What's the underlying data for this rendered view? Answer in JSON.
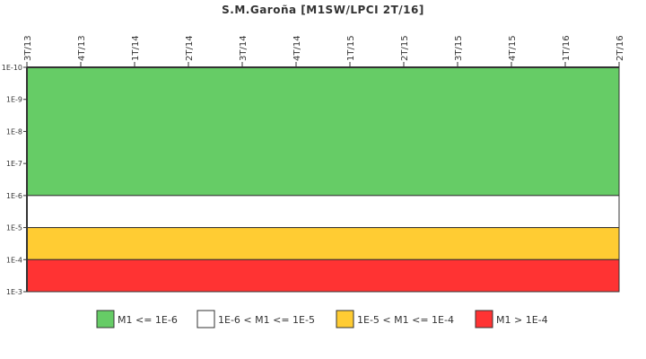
{
  "chart_data": {
    "type": "area",
    "title": "S.M.Garoña [M1SW/LPCI 2T/16]",
    "x_tick_labels": [
      "3T/13",
      "4T/13",
      "1T/14",
      "2T/14",
      "3T/14",
      "4T/14",
      "1T/15",
      "2T/15",
      "3T/15",
      "4T/15",
      "1T/16",
      "2T/16"
    ],
    "y_scale": "log",
    "y_inverted": true,
    "ylim": [
      1e-10,
      0.001
    ],
    "y_tick_values": [
      1e-10,
      1e-09,
      1e-08,
      1e-07,
      1e-06,
      1e-05,
      0.0001,
      0.001
    ],
    "y_tick_labels": [
      "1E-10",
      "1E-9",
      "1E-8",
      "1E-7",
      "1E-6",
      "1E-5",
      "1E-4",
      "1E-3"
    ],
    "bands": [
      {
        "label": "M1 <= 1E-6",
        "from": 1e-10,
        "to": 1e-06,
        "color": "#66cc66"
      },
      {
        "label": "1E-6 < M1 <= 1E-5",
        "from": 1e-06,
        "to": 1e-05,
        "color": "#ffffff"
      },
      {
        "label": "1E-5 < M1 <= 1E-4",
        "from": 1e-05,
        "to": 0.0001,
        "color": "#ffcc33"
      },
      {
        "label": "M1 > 1E-4",
        "from": 0.0001,
        "to": 0.001,
        "color": "#ff3333"
      }
    ],
    "grid": false,
    "legend_position": "bottom"
  }
}
